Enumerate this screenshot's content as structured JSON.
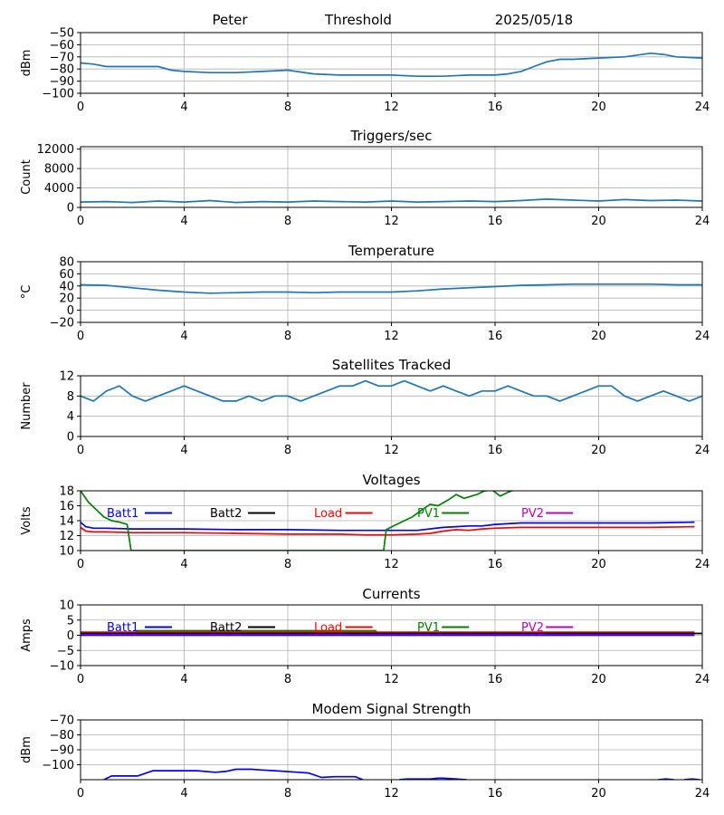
{
  "header": {
    "station": "Peter",
    "mode": "Threshold",
    "date": "2025/05/18"
  },
  "chart_data": [
    {
      "id": "signal",
      "type": "line",
      "title": "",
      "xlabel": "",
      "ylabel": "dBm",
      "xlim": [
        0,
        24
      ],
      "ylim": [
        -100,
        -50
      ],
      "xticks": [
        0,
        4,
        8,
        12,
        16,
        20,
        24
      ],
      "yticks": [
        -100,
        -90,
        -80,
        -70,
        -60,
        -50
      ],
      "ytick_labels": [
        "−100",
        "−90",
        "−80",
        "−70",
        "−60",
        "−50"
      ],
      "grid": true,
      "series": [
        {
          "color": "#1f77b4",
          "x": [
            0,
            0.5,
            1,
            2,
            3,
            3.5,
            4,
            5,
            6,
            7,
            8,
            9,
            10,
            11,
            12,
            13,
            14,
            15,
            16,
            16.5,
            17,
            17.5,
            18,
            18.5,
            19,
            20,
            21,
            22,
            22.5,
            23,
            24
          ],
          "y": [
            -75,
            -76,
            -78,
            -78,
            -78,
            -81,
            -82,
            -83,
            -83,
            -82,
            -81,
            -84,
            -85,
            -85,
            -85,
            -86,
            -86,
            -85,
            -85,
            -84,
            -82,
            -78,
            -74,
            -72,
            -72,
            -71,
            -70,
            -67,
            -68,
            -70,
            -71
          ]
        }
      ]
    },
    {
      "id": "triggers",
      "type": "line",
      "title": "Triggers/sec",
      "xlabel": "",
      "ylabel": "Count",
      "xlim": [
        0,
        24
      ],
      "ylim": [
        0,
        12500
      ],
      "xticks": [
        0,
        4,
        8,
        12,
        16,
        20,
        24
      ],
      "yticks": [
        0,
        4000,
        8000,
        12000
      ],
      "ytick_labels": [
        "0",
        "4000",
        "8000",
        "12000"
      ],
      "grid": true,
      "series": [
        {
          "color": "#1f77b4",
          "x": [
            0,
            1,
            2,
            3,
            4,
            5,
            6,
            7,
            8,
            9,
            10,
            11,
            12,
            13,
            14,
            15,
            16,
            17,
            18,
            19,
            20,
            21,
            22,
            23,
            24
          ],
          "y": [
            1100,
            1200,
            1000,
            1300,
            1100,
            1400,
            1000,
            1200,
            1100,
            1300,
            1200,
            1100,
            1300,
            1100,
            1200,
            1300,
            1200,
            1400,
            1700,
            1500,
            1300,
            1600,
            1400,
            1500,
            1300
          ]
        }
      ]
    },
    {
      "id": "temperature",
      "type": "line",
      "title": "Temperature",
      "xlabel": "",
      "ylabel": "°C",
      "xlim": [
        0,
        24
      ],
      "ylim": [
        -20,
        80
      ],
      "xticks": [
        0,
        4,
        8,
        12,
        16,
        20,
        24
      ],
      "yticks": [
        -20,
        0,
        20,
        40,
        60,
        80
      ],
      "ytick_labels": [
        "−20",
        "0",
        "20",
        "40",
        "60",
        "80"
      ],
      "grid": true,
      "series": [
        {
          "color": "#1f77b4",
          "x": [
            0,
            1,
            2,
            3,
            4,
            5,
            6,
            7,
            8,
            9,
            10,
            11,
            12,
            13,
            14,
            15,
            16,
            17,
            18,
            19,
            20,
            21,
            22,
            23,
            24
          ],
          "y": [
            42,
            41,
            37,
            33,
            30,
            28,
            29,
            30,
            30,
            29,
            30,
            30,
            30,
            32,
            35,
            37,
            39,
            41,
            42,
            43,
            43,
            43,
            43,
            42,
            42
          ]
        }
      ]
    },
    {
      "id": "satellites",
      "type": "line",
      "title": "Satellites Tracked",
      "xlabel": "",
      "ylabel": "Number",
      "xlim": [
        0,
        24
      ],
      "ylim": [
        0,
        12
      ],
      "xticks": [
        0,
        4,
        8,
        12,
        16,
        20,
        24
      ],
      "yticks": [
        0,
        4,
        8,
        12
      ],
      "ytick_labels": [
        "0",
        "4",
        "8",
        "12"
      ],
      "grid": true,
      "series": [
        {
          "color": "#1f77b4",
          "x": [
            0,
            0.5,
            1,
            1.5,
            2,
            2.5,
            3,
            3.5,
            4,
            4.5,
            5,
            5.5,
            6,
            6.5,
            7,
            7.5,
            8,
            8.5,
            9,
            9.5,
            10,
            10.5,
            11,
            11.5,
            12,
            12.5,
            13,
            13.5,
            14,
            14.5,
            15,
            15.5,
            16,
            16.5,
            17,
            17.5,
            18,
            18.5,
            19,
            19.5,
            20,
            20.5,
            21,
            21.5,
            22,
            22.5,
            23,
            23.5,
            24
          ],
          "y": [
            8,
            7,
            9,
            10,
            8,
            7,
            8,
            9,
            10,
            9,
            8,
            7,
            7,
            8,
            7,
            8,
            8,
            7,
            8,
            9,
            10,
            10,
            11,
            10,
            10,
            11,
            10,
            9,
            10,
            9,
            8,
            9,
            9,
            10,
            9,
            8,
            8,
            7,
            8,
            9,
            10,
            10,
            8,
            7,
            8,
            9,
            8,
            7,
            8
          ]
        }
      ]
    },
    {
      "id": "voltages",
      "type": "line",
      "title": "Voltages",
      "xlabel": "",
      "ylabel": "Volts",
      "xlim": [
        0,
        24
      ],
      "ylim": [
        10,
        18
      ],
      "xticks": [
        0,
        4,
        8,
        12,
        16,
        20,
        24
      ],
      "yticks": [
        10,
        12,
        14,
        16,
        18
      ],
      "ytick_labels": [
        "10",
        "12",
        "14",
        "16",
        "18"
      ],
      "grid": true,
      "legend": [
        {
          "label": "Batt1",
          "color": "#0000ff"
        },
        {
          "label": "Batt2",
          "color": "#000000"
        },
        {
          "label": "Load",
          "color": "#ff0000"
        },
        {
          "label": "PV1",
          "color": "#008000"
        },
        {
          "label": "PV2",
          "color": "#bf00bf"
        }
      ],
      "series": [
        {
          "name": "Batt1",
          "color": "#0000ff",
          "x": [
            0,
            0.2,
            0.5,
            1,
            2,
            4,
            6,
            8,
            10,
            11,
            12,
            13,
            14,
            14.5,
            15,
            15.5,
            16,
            17,
            18,
            20,
            22,
            23.7
          ],
          "y": [
            13.8,
            13.2,
            13.0,
            13.0,
            12.9,
            12.9,
            12.8,
            12.8,
            12.7,
            12.7,
            12.7,
            12.7,
            13.1,
            13.2,
            13.3,
            13.3,
            13.5,
            13.7,
            13.7,
            13.7,
            13.7,
            13.8
          ]
        },
        {
          "name": "Load",
          "color": "#ff0000",
          "x": [
            0,
            0.2,
            0.5,
            1,
            2,
            4,
            6,
            8,
            10,
            11,
            12,
            13,
            13.5,
            14,
            14.5,
            15,
            15.5,
            16,
            17,
            18,
            20,
            22,
            23.7
          ],
          "y": [
            13.1,
            12.6,
            12.5,
            12.5,
            12.4,
            12.4,
            12.3,
            12.2,
            12.2,
            12.1,
            12.1,
            12.2,
            12.3,
            12.6,
            12.8,
            12.7,
            12.9,
            13.0,
            13.1,
            13.1,
            13.1,
            13.1,
            13.2
          ]
        },
        {
          "name": "PV1",
          "color": "#008000",
          "x": [
            0,
            0.3,
            0.6,
            0.9,
            1.2,
            1.5,
            1.8,
            1.95,
            11.7,
            11.8,
            12.2,
            12.5,
            12.8,
            13.2,
            13.5,
            13.8,
            14.2,
            14.5,
            14.8,
            15.3,
            15.6,
            15.9,
            16.2,
            16.5,
            16.8
          ],
          "y": [
            18,
            16.5,
            15.5,
            14.5,
            14.0,
            13.8,
            13.5,
            10,
            10,
            12.8,
            13.5,
            14.0,
            14.5,
            15.5,
            16.2,
            16.0,
            16.8,
            17.5,
            17.0,
            17.5,
            18.0,
            18.1,
            17.3,
            17.8,
            18.2
          ]
        }
      ]
    },
    {
      "id": "currents",
      "type": "line",
      "title": "Currents",
      "xlabel": "",
      "ylabel": "Amps",
      "xlim": [
        0,
        24
      ],
      "ylim": [
        -10,
        10
      ],
      "xticks": [
        0,
        4,
        8,
        12,
        16,
        20,
        24
      ],
      "yticks": [
        -10,
        -5,
        0,
        5,
        10
      ],
      "ytick_labels": [
        "−10",
        "−5",
        "0",
        "5",
        "10"
      ],
      "grid": true,
      "legend": [
        {
          "label": "Batt1",
          "color": "#0000ff"
        },
        {
          "label": "Batt2",
          "color": "#000000"
        },
        {
          "label": "Load",
          "color": "#ff0000"
        },
        {
          "label": "PV1",
          "color": "#008000"
        },
        {
          "label": "PV2",
          "color": "#bf00bf"
        }
      ],
      "series": [
        {
          "name": "PV1",
          "color": "#008000",
          "x": [
            2.1,
            2.2,
            4,
            8,
            11.4,
            11.45
          ],
          "y": [
            0.5,
            1.5,
            1.5,
            1.5,
            1.5,
            0.5
          ]
        },
        {
          "name": "Load",
          "color": "#ff0000",
          "x": [
            0,
            4,
            8,
            12,
            16,
            20,
            23.7
          ],
          "y": [
            1.0,
            1.0,
            1.0,
            1.0,
            1.0,
            1.0,
            1.0
          ]
        },
        {
          "name": "Batt2",
          "color": "#000000",
          "x": [
            0,
            24
          ],
          "y": [
            0.6,
            0.6
          ]
        },
        {
          "name": "PV2",
          "color": "#bf00bf",
          "x": [
            0,
            23.7
          ],
          "y": [
            0.2,
            0.2
          ]
        },
        {
          "name": "Batt1",
          "color": "#0000ff",
          "x": [
            0,
            23.7
          ],
          "y": [
            0.0,
            0.0
          ]
        }
      ]
    },
    {
      "id": "modem",
      "type": "line",
      "title": "Modem Signal Strength",
      "xlabel": "",
      "ylabel": "dBm",
      "xlim": [
        0,
        24
      ],
      "ylim": [
        -110,
        -70
      ],
      "xticks": [
        0,
        4,
        8,
        12,
        16,
        20,
        24
      ],
      "yticks": [
        -100,
        -90,
        -80,
        -70
      ],
      "ytick_labels": [
        "−100",
        "−90",
        "−80",
        "−70"
      ],
      "grid": true,
      "series": [
        {
          "color": "#0000ff",
          "x": [
            0.9,
            1.2,
            2.2,
            2.8,
            3.5,
            4.5,
            5.2,
            5.6,
            6.0,
            6.6,
            7.0,
            7.5,
            8.4,
            8.8,
            9.3,
            9.8,
            10.6,
            10.9
          ],
          "y": [
            -110,
            -107.5,
            -107.5,
            -104,
            -104,
            -104,
            -105,
            -104.5,
            -103,
            -103,
            -103.5,
            -104,
            -105,
            -105.5,
            -108.5,
            -108,
            -108,
            -110
          ]
        },
        {
          "color": "#0000ff",
          "x": [
            12.3,
            12.6,
            13.5,
            13.8,
            14.0,
            14.5,
            14.9
          ],
          "y": [
            -110,
            -109.5,
            -109.5,
            -109,
            -109,
            -109.5,
            -110
          ]
        },
        {
          "color": "#0000ff",
          "x": [
            22.3,
            22.6,
            22.9
          ],
          "y": [
            -110,
            -109.5,
            -110
          ]
        },
        {
          "color": "#0000ff",
          "x": [
            23.3,
            23.6,
            23.9
          ],
          "y": [
            -110,
            -109.5,
            -110
          ]
        }
      ]
    }
  ]
}
